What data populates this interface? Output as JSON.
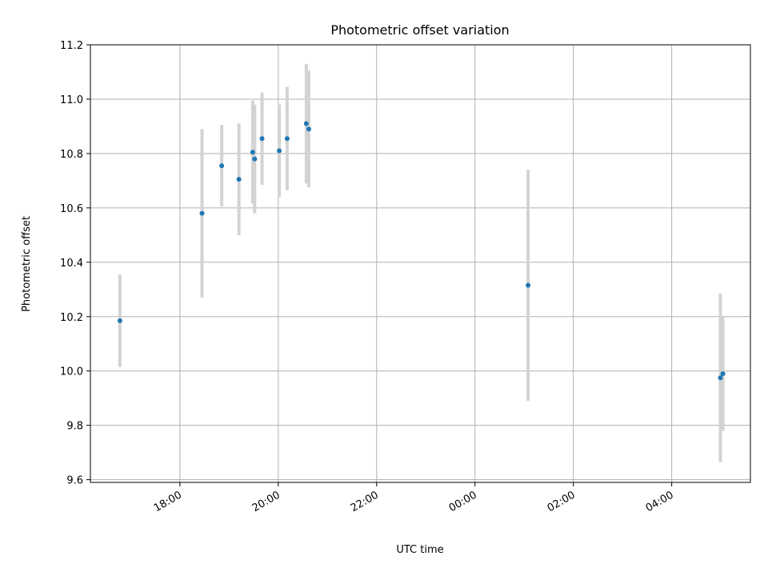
{
  "chart_data": {
    "type": "scatter",
    "title": "Photometric offset variation",
    "xlabel": "UTC time",
    "ylabel": "Photometric offset",
    "x_unit": "hours",
    "x_ticks": [
      {
        "value": 18,
        "label": "18:00"
      },
      {
        "value": 20,
        "label": "20:00"
      },
      {
        "value": 22,
        "label": "22:00"
      },
      {
        "value": 24,
        "label": "00:00"
      },
      {
        "value": 26,
        "label": "02:00"
      },
      {
        "value": 28,
        "label": "04:00"
      }
    ],
    "xlim": [
      16.18,
      29.6
    ],
    "y_ticks": [
      9.6,
      9.8,
      10.0,
      10.2,
      10.4,
      10.6,
      10.8,
      11.0,
      11.2
    ],
    "ylim": [
      9.59,
      11.2
    ],
    "grid": true,
    "point_color": "#1f77b4",
    "errorbar_color": "#d3d3d3",
    "points": [
      {
        "x": 16.78,
        "y": 10.185,
        "yerr": 0.17
      },
      {
        "x": 18.45,
        "y": 10.58,
        "yerr": 0.31
      },
      {
        "x": 18.85,
        "y": 10.755,
        "yerr": 0.15
      },
      {
        "x": 19.2,
        "y": 10.705,
        "yerr": 0.205
      },
      {
        "x": 19.48,
        "y": 10.805,
        "yerr": 0.19
      },
      {
        "x": 19.52,
        "y": 10.78,
        "yerr": 0.2
      },
      {
        "x": 19.67,
        "y": 10.855,
        "yerr": 0.17
      },
      {
        "x": 20.02,
        "y": 10.81,
        "yerr": 0.17
      },
      {
        "x": 20.18,
        "y": 10.855,
        "yerr": 0.19
      },
      {
        "x": 20.57,
        "y": 10.91,
        "yerr": 0.22
      },
      {
        "x": 20.62,
        "y": 10.89,
        "yerr": 0.215
      },
      {
        "x": 25.08,
        "y": 10.315,
        "yerr": 0.425
      },
      {
        "x": 28.99,
        "y": 9.975,
        "yerr": 0.31
      },
      {
        "x": 29.04,
        "y": 9.99,
        "yerr": 0.21
      }
    ]
  }
}
